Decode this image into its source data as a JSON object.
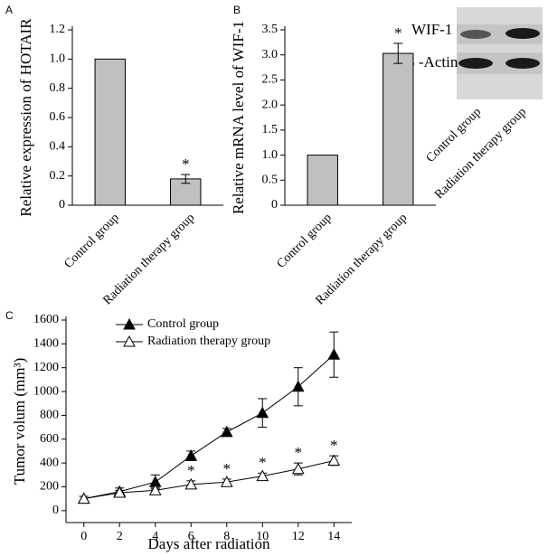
{
  "chart_data": [
    {
      "type": "bar",
      "panel": "A",
      "ylabel": "Relative expression of HOTAIR",
      "categories": [
        "Control group",
        "Radiation therapy group"
      ],
      "values": [
        1.0,
        0.18
      ],
      "errors": [
        null,
        0.03
      ],
      "significance": [
        null,
        "*"
      ],
      "color": "#c0c0c0",
      "ylim": [
        0,
        1.2
      ],
      "yticks": [
        0,
        0.2,
        0.4,
        0.6,
        0.8,
        {
          "value": 1,
          "label": "1.0"
        },
        1.2
      ]
    },
    {
      "type": "bar",
      "panel": "B",
      "ylabel": "Relative mRNA level of WIF-1",
      "categories": [
        "Control group",
        "Radiation therapy group"
      ],
      "values": [
        1.0,
        3.03
      ],
      "errors": [
        null,
        0.2
      ],
      "significance": [
        null,
        "*"
      ],
      "color": "#c0c0c0",
      "ylim": [
        0,
        3.5
      ],
      "yticks": [
        0,
        0.5,
        {
          "value": 1,
          "label": "1.0"
        },
        1.5,
        {
          "value": 2,
          "label": "2.0"
        },
        2.5,
        {
          "value": 3,
          "label": "3.0"
        },
        3.5
      ],
      "blot": {
        "bands": [
          "WIF-1",
          "β -Actin"
        ],
        "lanes": [
          "Control group",
          "Radiation therapy group"
        ]
      }
    },
    {
      "type": "line",
      "panel": "C",
      "xlabel": "Days after radiation",
      "ylabel": "Tumor volum (mm³)",
      "x": [
        0,
        2,
        4,
        6,
        8,
        10,
        12,
        14
      ],
      "series": [
        {
          "name": "Control group",
          "color": "#000000",
          "marker": "filled-triangle",
          "values": [
            100,
            160,
            240,
            460,
            660,
            820,
            1040,
            1310
          ],
          "errors": [
            20,
            30,
            60,
            40,
            30,
            120,
            160,
            190
          ]
        },
        {
          "name": "Radiation therapy group",
          "color": "#000000",
          "marker": "open-triangle",
          "values": [
            100,
            150,
            170,
            220,
            240,
            290,
            350,
            420
          ],
          "errors": [
            20,
            20,
            20,
            30,
            25,
            25,
            50,
            40
          ],
          "significance": [
            null,
            null,
            null,
            "*",
            "*",
            "*",
            "*",
            "*"
          ]
        }
      ],
      "xlim": [
        -1,
        15
      ],
      "ylim": [
        -100,
        1600
      ],
      "xticks": [
        0,
        2,
        4,
        6,
        8,
        10,
        12,
        14
      ],
      "yticks": [
        0,
        200,
        400,
        600,
        800,
        1000,
        1200,
        1400,
        1600
      ]
    }
  ]
}
